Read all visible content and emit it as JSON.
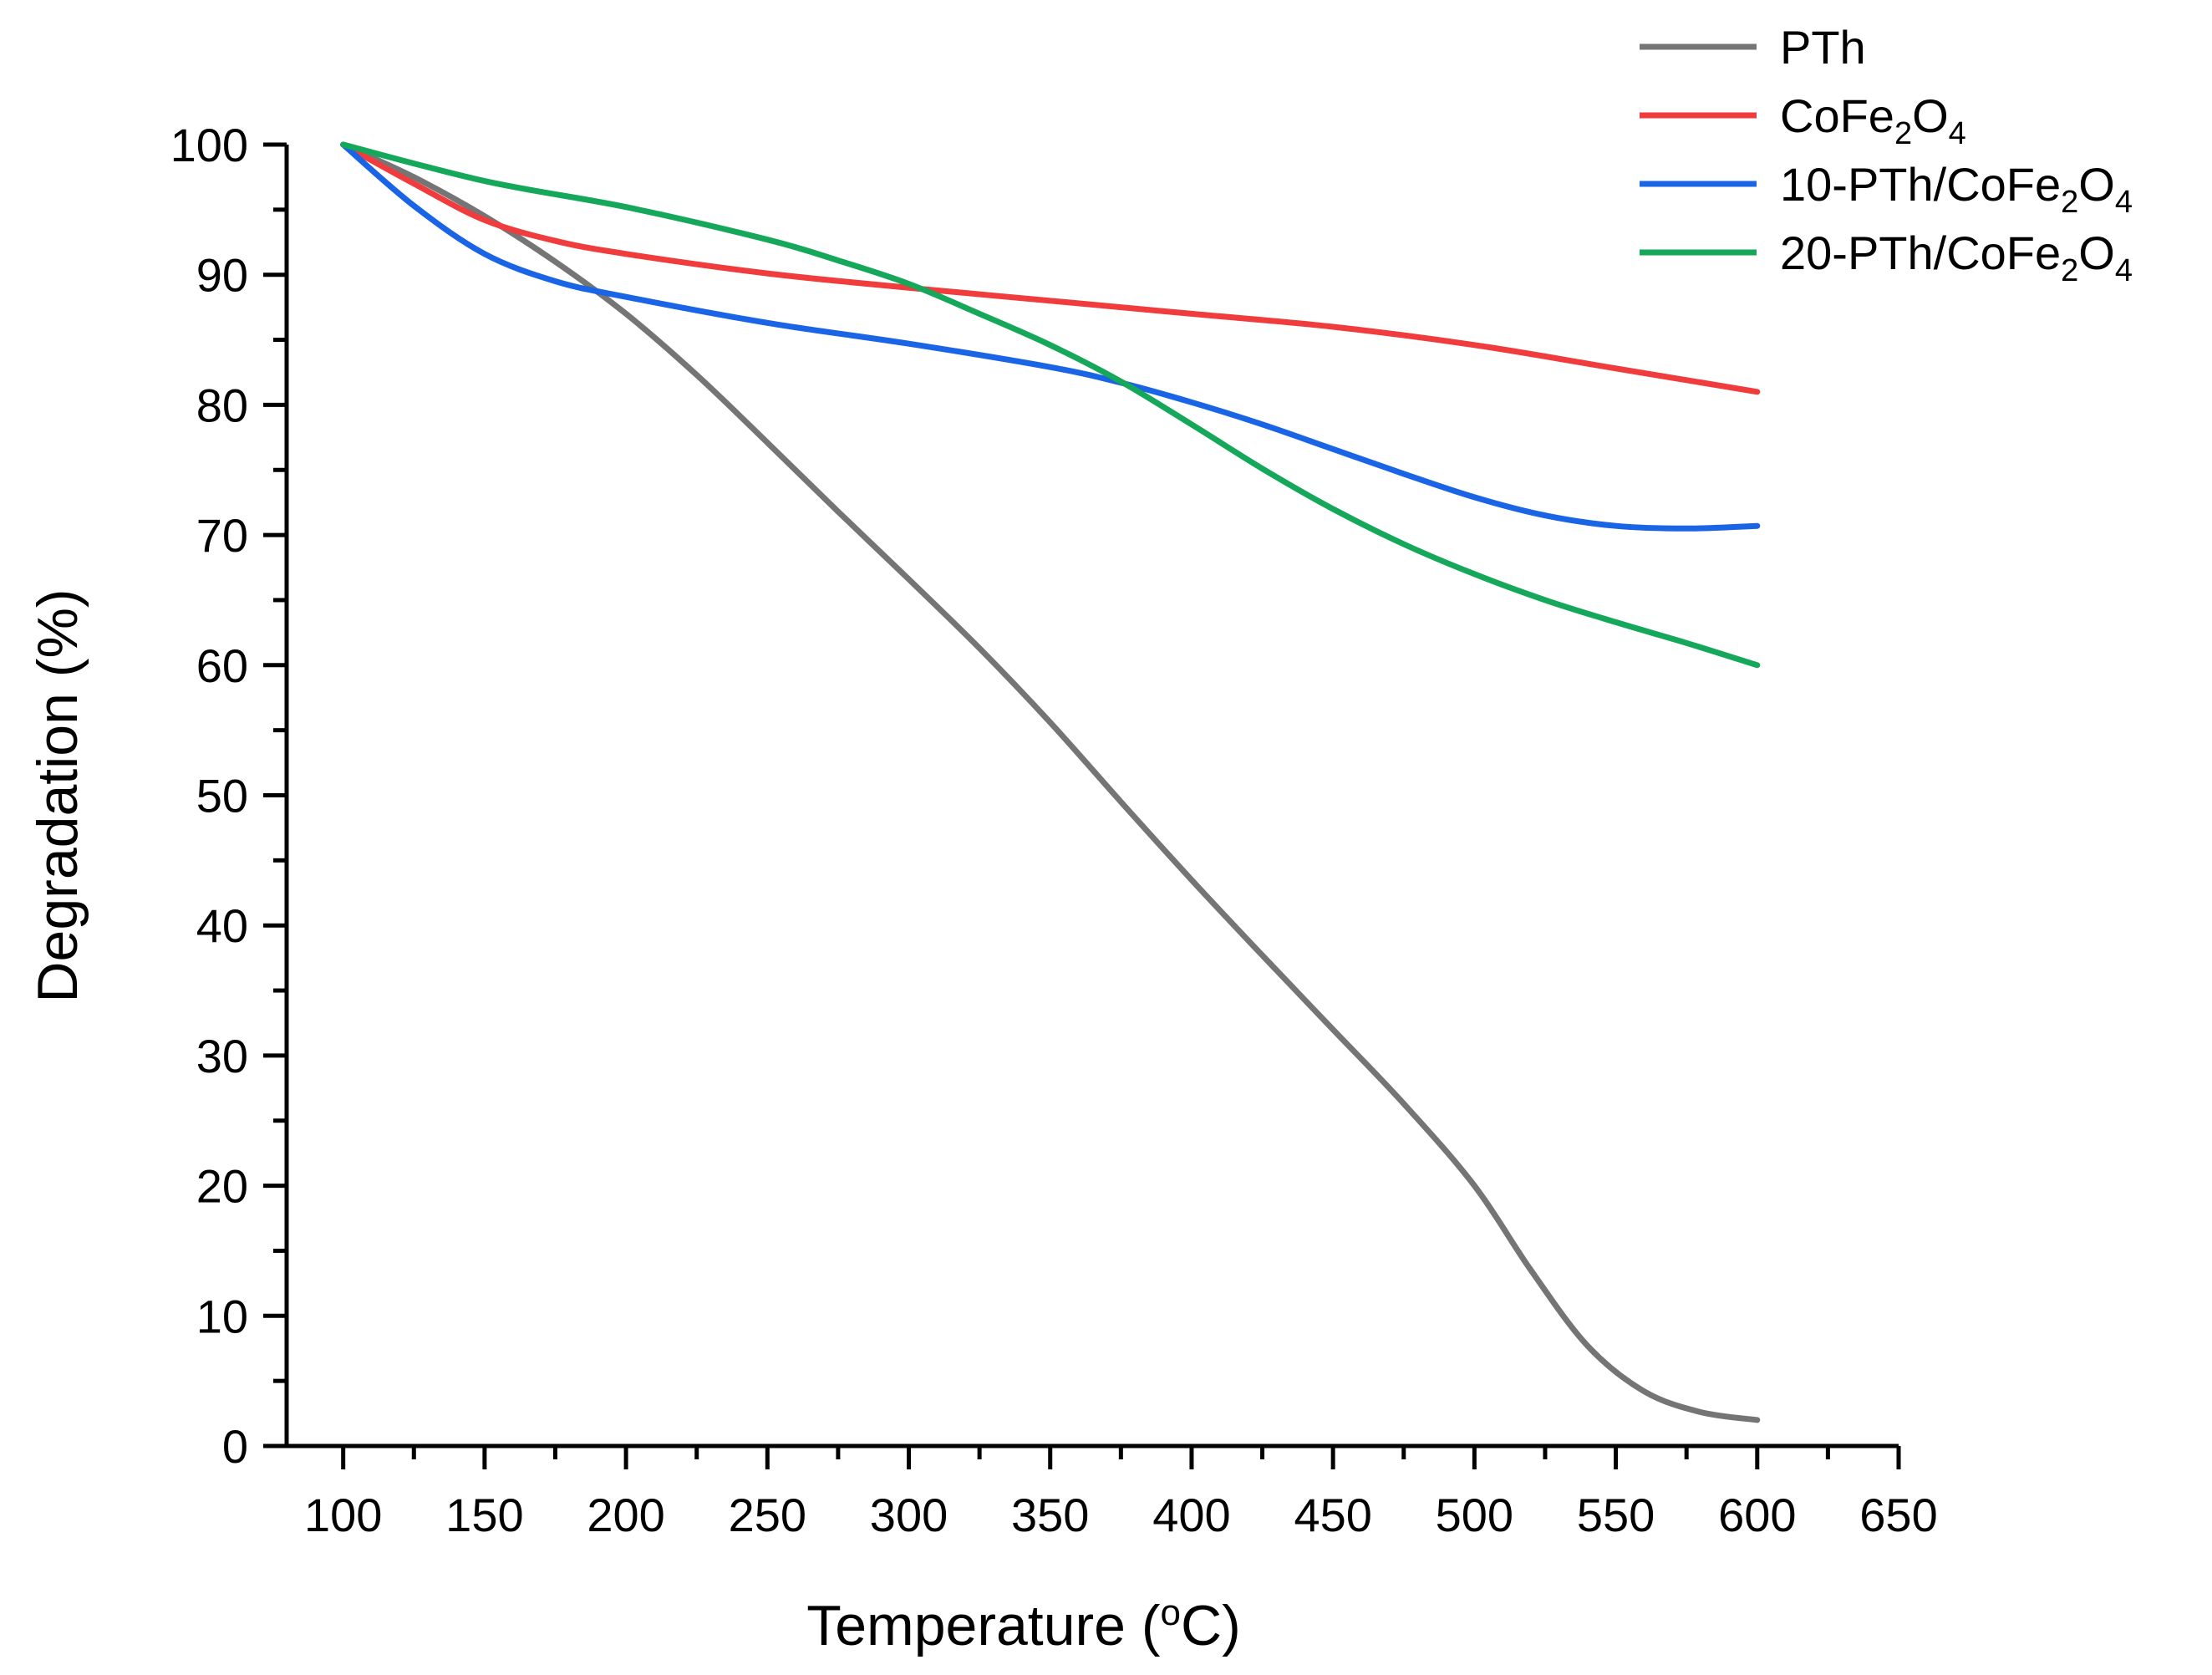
{
  "chart_data": {
    "type": "line",
    "xlabel": "Temperature (",
    "xlabel_sup": "o",
    "xlabel_end": "C)",
    "ylabel": "Degradation (%)",
    "xlim": [
      80,
      650
    ],
    "ylim": [
      0,
      100
    ],
    "x_ticks": [
      100,
      150,
      200,
      250,
      300,
      350,
      400,
      450,
      500,
      550,
      600,
      650
    ],
    "y_ticks": [
      0,
      10,
      20,
      30,
      40,
      50,
      60,
      70,
      80,
      90,
      100
    ],
    "legend_position": "top-right",
    "series": [
      {
        "name": "PTh",
        "legend_parts": [
          {
            "t": "PTh"
          }
        ],
        "color": "#757575",
        "x": [
          100,
          125,
          150,
          175,
          200,
          225,
          250,
          275,
          300,
          325,
          350,
          375,
          400,
          425,
          450,
          475,
          500,
          520,
          540,
          560,
          580,
          600
        ],
        "y": [
          100,
          97.5,
          94.5,
          91,
          87,
          82.3,
          77.1,
          71.8,
          66.6,
          61.3,
          55.6,
          49.5,
          43.5,
          37.7,
          32,
          26.3,
          20,
          13.5,
          7.7,
          4.2,
          2.6,
          2
        ]
      },
      {
        "name": "CoFe2O4",
        "legend_parts": [
          {
            "t": "CoFe"
          },
          {
            "t": "2",
            "sub": true
          },
          {
            "t": "O"
          },
          {
            "t": "4",
            "sub": true
          }
        ],
        "color": "#f03c3c",
        "x": [
          100,
          125,
          150,
          175,
          200,
          250,
          300,
          350,
          400,
          450,
          500,
          550,
          600
        ],
        "y": [
          100,
          97,
          94.2,
          92.6,
          91.6,
          90.1,
          89,
          88,
          87,
          86,
          84.6,
          82.8,
          81
        ]
      },
      {
        "name": "10-PTh/CoFe2O4",
        "legend_parts": [
          {
            "t": "10-PTh/CoFe"
          },
          {
            "t": "2",
            "sub": true
          },
          {
            "t": "O"
          },
          {
            "t": "4",
            "sub": true
          }
        ],
        "color": "#1a64e6",
        "x": [
          100,
          125,
          150,
          175,
          200,
          250,
          300,
          350,
          375,
          400,
          425,
          450,
          475,
          500,
          525,
          550,
          575,
          600
        ],
        "y": [
          100,
          95.3,
          91.6,
          89.5,
          88.3,
          86.3,
          84.7,
          82.9,
          81.7,
          80.2,
          78.5,
          76.6,
          74.7,
          72.9,
          71.5,
          70.7,
          70.5,
          70.7
        ]
      },
      {
        "name": "20-PTh/CoFe2O4",
        "legend_parts": [
          {
            "t": "20-PTh/CoFe"
          },
          {
            "t": "2",
            "sub": true
          },
          {
            "t": "O"
          },
          {
            "t": "4",
            "sub": true
          }
        ],
        "color": "#16a85a",
        "x": [
          100,
          150,
          200,
          250,
          275,
          300,
          325,
          350,
          375,
          400,
          425,
          450,
          475,
          500,
          525,
          550,
          575,
          600
        ],
        "y": [
          100,
          97.2,
          95.2,
          92.7,
          91.1,
          89.3,
          87,
          84.6,
          81.8,
          78.5,
          75.1,
          72,
          69.3,
          67,
          65,
          63.3,
          61.7,
          60
        ]
      }
    ]
  }
}
